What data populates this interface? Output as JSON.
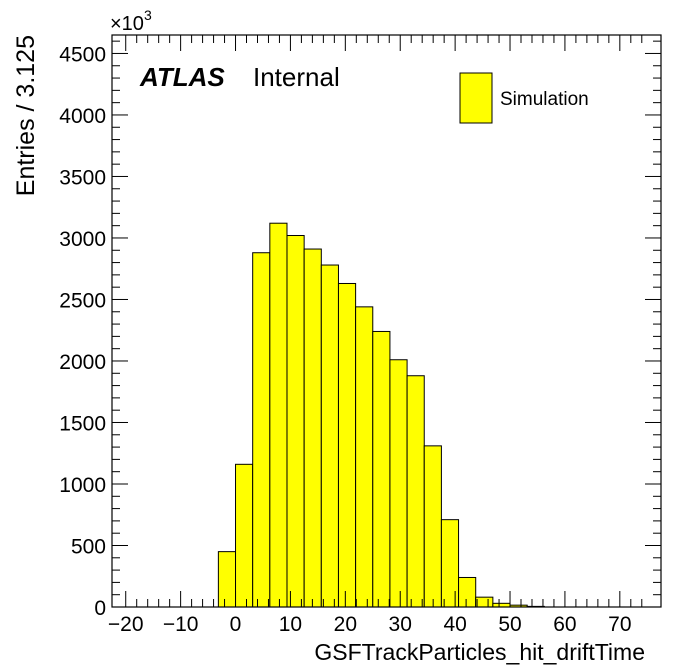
{
  "chart_data": {
    "type": "bar",
    "histogram": true,
    "xlabel": "GSFTrackParticles_hit_driftTime",
    "ylabel": "Entries / 3.125",
    "y_multiplier_label": "×10",
    "y_multiplier_exponent": "3",
    "xlim": [
      -22.5,
      77.5
    ],
    "ylim": [
      0,
      4650
    ],
    "x_ticks": [
      "−20",
      "−10",
      "0",
      "10",
      "20",
      "30",
      "40",
      "50",
      "60",
      "70"
    ],
    "x_tick_values": [
      -20,
      -10,
      0,
      10,
      20,
      30,
      40,
      50,
      60,
      70
    ],
    "y_ticks": [
      "0",
      "500",
      "1000",
      "1500",
      "2000",
      "2500",
      "3000",
      "3500",
      "4000",
      "4500"
    ],
    "y_tick_values": [
      0,
      500,
      1000,
      1500,
      2000,
      2500,
      3000,
      3500,
      4000,
      4500
    ],
    "bin_width": 3.125,
    "bin_edges_start": -3.125,
    "values": [
      450,
      1160,
      2880,
      3120,
      3020,
      2910,
      2780,
      2630,
      2440,
      2240,
      2010,
      1880,
      1310,
      710,
      240,
      80,
      30,
      15,
      5
    ],
    "fill_color": "#ffff00",
    "line_color": "#000000",
    "grid": false,
    "legend": {
      "position": "top-right",
      "entries": [
        {
          "label": "Simulation",
          "color": "#ffff00"
        }
      ]
    },
    "atlas_label": {
      "bold": "ATLAS",
      "text": "Internal"
    }
  }
}
